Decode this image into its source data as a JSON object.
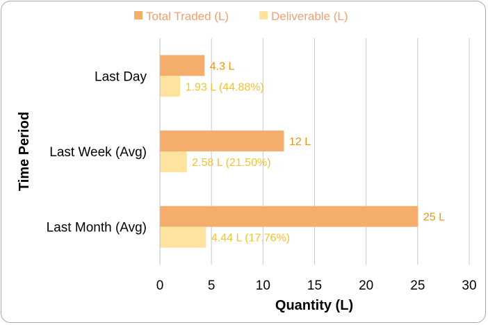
{
  "chart_data": {
    "type": "bar",
    "orientation": "horizontal",
    "categories": [
      "Last Day",
      "Last Week (Avg)",
      "Last Month (Avg)"
    ],
    "series": [
      {
        "name": "Total Traded (L)",
        "values": [
          4.3,
          12,
          25
        ],
        "labels": [
          "4.3 L",
          "12 L",
          "25 L"
        ],
        "color": "#f5ad6b"
      },
      {
        "name": "Deliverable (L)",
        "values": [
          1.93,
          2.58,
          4.44
        ],
        "labels": [
          "1.93 L (44.88%)",
          "2.58 L (21.50%)",
          "4.44 L (17.76%)"
        ],
        "color": "#fde39e"
      }
    ],
    "xlabel": "Quantity (L)",
    "ylabel": "Time Period",
    "xlim": [
      0,
      30
    ],
    "xticks": [
      0,
      5,
      10,
      15,
      20,
      25,
      30
    ],
    "grid": true,
    "legend_position": "top",
    "label_colors": {
      "total": "#e8960f",
      "deliverable": "#f2c230"
    },
    "legend_text_color": "#f0a070"
  }
}
